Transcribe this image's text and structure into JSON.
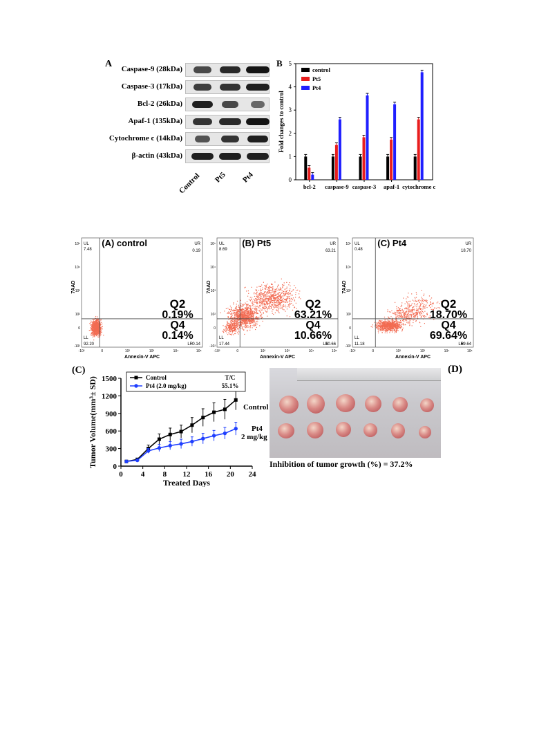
{
  "western_blot": {
    "panel_letter": "A",
    "proteins": [
      "Caspase-9 (28kDa)",
      "Caspase-3 (17kDa)",
      "Bcl-2 (26kDa)",
      "Apaf-1 (135kDa)",
      "Cytochrome c (14kDa)",
      "β-actin (43kDa)"
    ],
    "lanes": [
      "Control",
      "Pt5",
      "Pt4"
    ]
  },
  "chart_data": [
    {
      "type": "bar",
      "panel_letter": "B",
      "categories": [
        "bcl-2",
        "caspase-9",
        "caspase-3",
        "apaf-1",
        "cytochrome c"
      ],
      "series": [
        {
          "name": "control",
          "color": "#000000",
          "values": [
            1.0,
            1.0,
            1.0,
            1.0,
            1.0
          ]
        },
        {
          "name": "Pt5",
          "color": "#e81e1e",
          "values": [
            0.52,
            1.5,
            1.83,
            1.73,
            2.6
          ]
        },
        {
          "name": "Pt4",
          "color": "#1f1fff",
          "values": [
            0.22,
            2.6,
            3.63,
            3.25,
            4.63
          ]
        }
      ],
      "ylabel": "Fold changes to control",
      "ylim": [
        0,
        5
      ],
      "yticks": [
        "0",
        "1",
        "2",
        "3",
        "4",
        "5"
      ],
      "legend_position": "top-left"
    },
    {
      "type": "scatter",
      "panels": [
        {
          "title": "(A) control",
          "UL": "7.48",
          "UR": "0.19",
          "LL": "92.20",
          "LR": "0.14",
          "Q2_label": "Q2",
          "Q2": "0.19%",
          "Q4_label": "Q4",
          "Q4": "0.14%"
        },
        {
          "title": "(B) Pt5",
          "UL": "8.69",
          "UR": "63.21",
          "LL": "17.44",
          "LR": "10.66",
          "Q2_label": "Q2",
          "Q2": "63.21%",
          "Q4_label": "Q4",
          "Q4": "10.66%"
        },
        {
          "title": "(C) Pt4",
          "UL": "0.48",
          "UR": "18.70",
          "LL": "11.18",
          "LR": "69.64",
          "Q2_label": "Q2",
          "Q2": "18.70%",
          "Q4_label": "Q4",
          "Q4": "69.64%"
        }
      ],
      "xlabel": "Annexin-V APC",
      "ylabel": "7AAD",
      "corner_labels": [
        "UL",
        "UR",
        "LL",
        "LR"
      ],
      "xticks": [
        "-10²",
        "0",
        "10²",
        "10³",
        "10⁴",
        "10⁵"
      ],
      "yticks": [
        "10²",
        "10³",
        "10⁴",
        "10⁵"
      ],
      "yticks_low": "0",
      "yticks_neg": "-10²"
    },
    {
      "type": "line",
      "panel_letter": "(C)",
      "x": [
        1,
        3,
        5,
        7,
        9,
        11,
        13,
        15,
        17,
        19,
        21
      ],
      "series": [
        {
          "name": "Control",
          "color": "#000000",
          "values": [
            80,
            115,
            300,
            460,
            540,
            590,
            700,
            830,
            920,
            970,
            1130
          ],
          "err": [
            10,
            20,
            60,
            90,
            110,
            110,
            130,
            150,
            160,
            170,
            170
          ]
        },
        {
          "name": "Pt4 (2.0 mg/kg)",
          "color": "#1f3fff",
          "values": [
            80,
            100,
            260,
            310,
            350,
            380,
            420,
            470,
            520,
            560,
            640
          ],
          "err": [
            10,
            15,
            40,
            60,
            70,
            80,
            80,
            90,
            90,
            100,
            110
          ]
        }
      ],
      "xlabel": "Treated Days",
      "ylabel": "Tumor Volume(mm³± SD)",
      "xticks": [
        "0",
        "4",
        "8",
        "12",
        "16",
        "20",
        "24"
      ],
      "yticks": [
        "0",
        "300",
        "600",
        "900",
        "1200",
        "1500"
      ],
      "xlim": [
        0,
        24
      ],
      "ylim": [
        0,
        1500
      ],
      "legend_header": "T/C",
      "legend_value": "55.1%",
      "end_label_1": "Control",
      "end_label_2a": "Pt4",
      "end_label_2b": "2 mg/kg"
    }
  ],
  "tumor_photo": {
    "panel_letter": "(D)",
    "caption": "Inhibition of tumor growth (%) = 37.2%"
  }
}
